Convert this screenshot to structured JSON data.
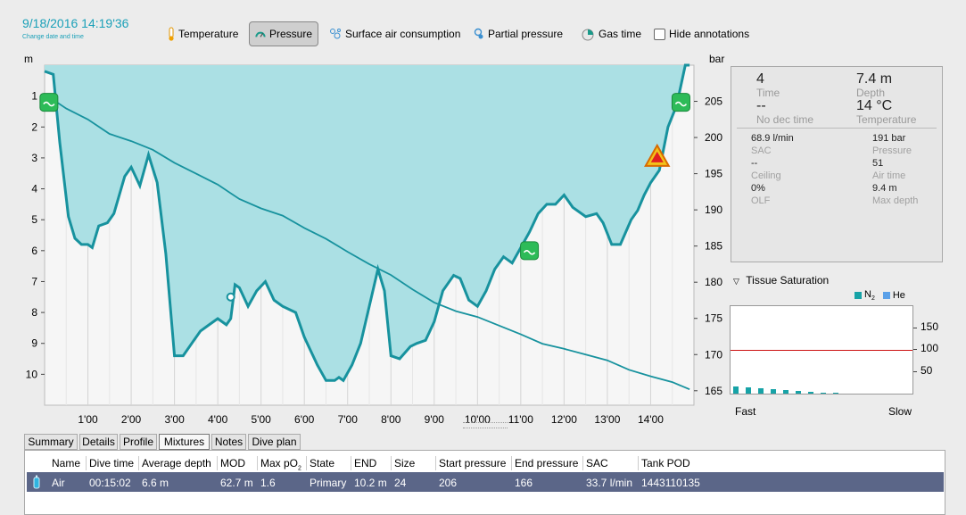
{
  "header": {
    "datetime": "9/18/2016 14:19'36",
    "change_link": "Change date and time"
  },
  "toolbar": {
    "temperature": "Temperature",
    "pressure": "Pressure",
    "sac": "Surface air consumption",
    "partial": "Partial pressure",
    "gas_time": "Gas time",
    "hide_annotations": "Hide annotations",
    "pressure_active": true,
    "hide_checked": false
  },
  "chart_data": {
    "type": "line",
    "left_axis_label": "m",
    "right_axis_label": "bar",
    "depth_ticks": [
      "1",
      "2",
      "3",
      "4",
      "5",
      "6",
      "7",
      "8",
      "9",
      "10"
    ],
    "pressure_ticks": [
      "205",
      "200",
      "195",
      "190",
      "185",
      "180",
      "175",
      "170",
      "165"
    ],
    "time_ticks": [
      "1'00",
      "2'00",
      "3'00",
      "4'00",
      "5'00",
      "6'00",
      "7'00",
      "8'00",
      "9'00",
      "10'00",
      "11'00",
      "12'00",
      "13'00",
      "14'00"
    ],
    "depth_range": [
      0,
      11
    ],
    "pressure_range": [
      163,
      210
    ],
    "time_range_min": [
      0,
      15
    ],
    "depth_series": {
      "name": "Depth",
      "t": [
        0,
        0.2,
        0.35,
        0.55,
        0.7,
        0.85,
        1.0,
        1.1,
        1.25,
        1.45,
        1.6,
        1.85,
        2.0,
        2.2,
        2.4,
        2.6,
        2.8,
        3.0,
        3.2,
        3.4,
        3.6,
        3.8,
        4.0,
        4.2,
        4.3,
        4.4,
        4.5,
        4.7,
        4.9,
        5.1,
        5.3,
        5.5,
        5.8,
        6.0,
        6.3,
        6.5,
        6.7,
        6.8,
        6.9,
        7.1,
        7.3,
        7.5,
        7.7,
        7.85,
        8.0,
        8.2,
        8.45,
        8.6,
        8.8,
        9.0,
        9.2,
        9.45,
        9.6,
        9.8,
        10.0,
        10.2,
        10.4,
        10.6,
        10.8,
        11.0,
        11.2,
        11.4,
        11.6,
        11.8,
        12.0,
        12.2,
        12.5,
        12.75,
        12.9,
        13.1,
        13.3,
        13.55,
        13.7,
        13.85,
        14.0,
        14.2,
        14.4,
        14.6,
        14.8,
        14.9
      ],
      "depth": [
        0.2,
        0.3,
        2.5,
        4.9,
        5.6,
        5.8,
        5.8,
        5.9,
        5.2,
        5.1,
        4.8,
        3.6,
        3.3,
        3.9,
        2.9,
        3.8,
        6.1,
        9.4,
        9.4,
        9.0,
        8.6,
        8.4,
        8.2,
        8.4,
        8.2,
        7.1,
        7.2,
        7.8,
        7.3,
        7.0,
        7.6,
        7.8,
        8.0,
        8.8,
        9.7,
        10.2,
        10.2,
        10.1,
        10.2,
        9.7,
        9.0,
        7.8,
        6.6,
        7.3,
        9.4,
        9.5,
        9.1,
        9.0,
        8.9,
        8.3,
        7.3,
        6.8,
        6.9,
        7.6,
        7.8,
        7.3,
        6.6,
        6.2,
        6.4,
        5.9,
        5.4,
        4.8,
        4.5,
        4.5,
        4.2,
        4.6,
        4.9,
        4.8,
        5.1,
        5.8,
        5.8,
        5.0,
        4.7,
        4.2,
        3.8,
        3.4,
        2.0,
        1.3,
        0.0,
        0.0
      ]
    },
    "pressure_series": {
      "name": "Pressure",
      "t": [
        0,
        0.5,
        1.0,
        1.5,
        2.0,
        2.5,
        3.0,
        3.5,
        4.0,
        4.5,
        5.0,
        5.5,
        6.0,
        6.5,
        7.0,
        7.5,
        8.0,
        8.5,
        9.0,
        9.5,
        10.0,
        10.5,
        11.0,
        11.5,
        12.0,
        12.5,
        13.0,
        13.5,
        14.0,
        14.5,
        14.9
      ],
      "bar": [
        206,
        204,
        202.5,
        200.5,
        199.5,
        198.3,
        196.5,
        195,
        193.5,
        191.5,
        190.2,
        189.2,
        187.5,
        186,
        184.2,
        182.5,
        181,
        179,
        177.2,
        176,
        175.2,
        174,
        172.8,
        171.5,
        170.8,
        170,
        169.2,
        167.9,
        167,
        166.2,
        165.2
      ]
    },
    "annotations": [
      {
        "t": 0.1,
        "depth": 1.2,
        "kind": "start-icon"
      },
      {
        "t": 4.3,
        "depth": 7.5,
        "kind": "marker"
      },
      {
        "t": 11.2,
        "depth": 6.0,
        "kind": "gas-switch-icon"
      },
      {
        "t": 14.15,
        "depth": 3.0,
        "kind": "warning-icon"
      },
      {
        "t": 14.7,
        "depth": 1.2,
        "kind": "surface-icon"
      }
    ]
  },
  "info": {
    "time_value": "4",
    "time_label": "Time",
    "depth_value": "7.4 m",
    "depth_label": "Depth",
    "nodec_value": "--",
    "nodec_label": "No dec time",
    "temp_value": "14 °C",
    "temp_label": "Temperature",
    "sac_value": "68.9 l/min",
    "sac_label": "SAC",
    "pressure_value": "191 bar",
    "pressure_label": "Pressure",
    "ceiling_value": "--",
    "ceiling_label": "Ceiling",
    "airtime_value": "51",
    "airtime_label": "Air time",
    "olf_value": "0%",
    "olf_label": "OLF",
    "maxdepth_value": "9.4 m",
    "maxdepth_label": "Max depth"
  },
  "tissue": {
    "title": "Tissue Saturation",
    "legend_n2": "N",
    "legend_n2_sub": "2",
    "legend_he": "He",
    "ticks": [
      "150",
      "100",
      "50"
    ],
    "fast_label": "Fast",
    "slow_label": "Slow",
    "range": [
      0,
      200
    ],
    "limit": 100,
    "values": [
      16,
      14,
      13,
      11,
      9,
      6,
      4,
      3,
      2
    ]
  },
  "tabs": [
    "Summary",
    "Details",
    "Profile",
    "Mixtures",
    "Notes",
    "Dive plan"
  ],
  "active_tab": "Mixtures",
  "mixtures": {
    "headers": [
      "Name",
      "Dive time",
      "Average depth",
      "MOD",
      "Max pO",
      "State",
      "END",
      "Size",
      "Start pressure",
      "End pressure",
      "SAC",
      "Tank POD"
    ],
    "maxpo_sub": "2",
    "rows": [
      [
        "Air",
        "00:15:02",
        "6.6 m",
        "62.7 m",
        "1.6",
        "Primary",
        "10.2 m",
        "24",
        "206",
        "166",
        "33.7 l/min",
        "1443110135"
      ]
    ]
  },
  "colors": {
    "accent": "#1aa0b8",
    "depth_fill": "#abe0e4",
    "line": "#17929e",
    "row_selected": "#5b6688",
    "limit_line": "#cc1111"
  }
}
